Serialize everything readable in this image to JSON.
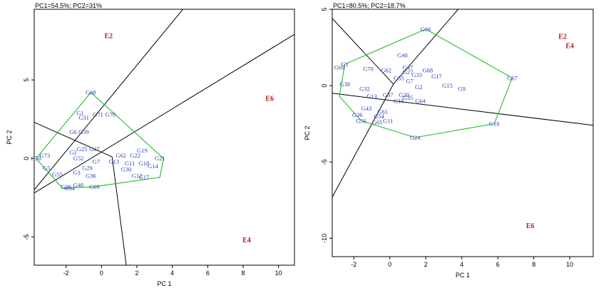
{
  "chart_data": [
    {
      "type": "scatter",
      "subtype": "gge-biplot-which-won-where",
      "title": "PC1=54.5%; PC2=31%",
      "xlabel": "PC 1",
      "ylabel": "PC 2",
      "xlim": [
        -3.8,
        10.9
      ],
      "ylim": [
        -6.8,
        9.5
      ],
      "xticks": [
        -2,
        0,
        2,
        4,
        6,
        8,
        10
      ],
      "yticks": [
        -5,
        0,
        5
      ],
      "grid": false,
      "hull_color": "#39c039",
      "line_color": "#000000",
      "genotype_color": "#2b3fb5",
      "environment_color": "#b22222",
      "environments": [
        {
          "name": "E2",
          "x": 0.4,
          "y": 7.8
        },
        {
          "name": "E6",
          "x": 9.5,
          "y": 3.8
        },
        {
          "name": "E4",
          "x": 8.2,
          "y": -5.2
        }
      ],
      "genotypes": [
        {
          "name": "G68",
          "x": -0.6,
          "y": 4.2
        },
        {
          "name": "G1",
          "x": -1.2,
          "y": 2.9
        },
        {
          "name": "G31",
          "x": -1.0,
          "y": 2.6
        },
        {
          "name": "G71",
          "x": -0.2,
          "y": 2.8
        },
        {
          "name": "G70",
          "x": 0.5,
          "y": 2.8
        },
        {
          "name": "G6",
          "x": -1.6,
          "y": 1.7
        },
        {
          "name": "G39",
          "x": -1.0,
          "y": 1.7
        },
        {
          "name": "G73",
          "x": -3.2,
          "y": 0.2
        },
        {
          "name": "G50",
          "x": -3.7,
          "y": 0.0
        },
        {
          "name": "G5",
          "x": -3.1,
          "y": -0.6
        },
        {
          "name": "G55",
          "x": -2.5,
          "y": -1.0
        },
        {
          "name": "G3",
          "x": -1.4,
          "y": -0.9
        },
        {
          "name": "G26",
          "x": -2.0,
          "y": -1.8
        },
        {
          "name": "G54",
          "x": -1.8,
          "y": -1.9
        },
        {
          "name": "G40",
          "x": -1.3,
          "y": -1.7
        },
        {
          "name": "G36",
          "x": -0.6,
          "y": -1.1
        },
        {
          "name": "G69",
          "x": -0.4,
          "y": -1.8
        },
        {
          "name": "G25",
          "x": -1.1,
          "y": 0.6
        },
        {
          "name": "G47",
          "x": -0.4,
          "y": 0.6
        },
        {
          "name": "G2",
          "x": -1.6,
          "y": 0.4
        },
        {
          "name": "G52",
          "x": -1.3,
          "y": 0.0
        },
        {
          "name": "G7",
          "x": -0.3,
          "y": -0.2
        },
        {
          "name": "G13",
          "x": 0.7,
          "y": -0.2
        },
        {
          "name": "G29",
          "x": -0.8,
          "y": -0.6
        },
        {
          "name": "G30",
          "x": 1.4,
          "y": -0.7
        },
        {
          "name": "G19",
          "x": 2.3,
          "y": 0.5
        },
        {
          "name": "G22",
          "x": 1.9,
          "y": 0.2
        },
        {
          "name": "G62",
          "x": 1.1,
          "y": 0.2
        },
        {
          "name": "G11",
          "x": 1.6,
          "y": -0.3
        },
        {
          "name": "G18",
          "x": 2.4,
          "y": -0.3
        },
        {
          "name": "G21",
          "x": 3.3,
          "y": 0.0
        },
        {
          "name": "G14",
          "x": 2.9,
          "y": -0.5
        },
        {
          "name": "G12",
          "x": 2.0,
          "y": -1.1
        },
        {
          "name": "G17",
          "x": 2.4,
          "y": -1.2
        }
      ],
      "hull": [
        {
          "x": -0.6,
          "y": 4.2
        },
        {
          "x": 3.5,
          "y": 0.0
        },
        {
          "x": 3.3,
          "y": -1.2
        },
        {
          "x": -0.4,
          "y": -1.8
        },
        {
          "x": -2.2,
          "y": -1.9
        },
        {
          "x": -3.7,
          "y": 0.0
        }
      ],
      "rays": [
        {
          "x1": -3.8,
          "y1": -2.2,
          "x2": 10.9,
          "y2": 7.9
        },
        {
          "x1": -3.8,
          "y1": 2.3,
          "x2": 0.6,
          "y2": 0.1
        },
        {
          "x1": 0.6,
          "y1": 0.1,
          "x2": 1.4,
          "y2": -6.8
        },
        {
          "x1": -3.8,
          "y1": -2.0,
          "x2": 4.6,
          "y2": 9.5
        }
      ]
    },
    {
      "type": "scatter",
      "subtype": "gge-biplot-which-won-where",
      "title": "PC1=80.5%; PC2=18.7%",
      "xlabel": "PC 1",
      "ylabel": "PC 2",
      "xlim": [
        -3.2,
        11.3
      ],
      "ylim": [
        -11.2,
        5.0
      ],
      "xticks": [
        -2,
        0,
        2,
        4,
        6,
        8,
        10
      ],
      "yticks": [
        -10,
        -5,
        0,
        5
      ],
      "grid": false,
      "hull_color": "#39c039",
      "line_color": "#000000",
      "genotype_color": "#2b3fb5",
      "environment_color": "#b22222",
      "environments": [
        {
          "name": "E2",
          "x": 9.6,
          "y": 3.2
        },
        {
          "name": "E4",
          "x": 10.0,
          "y": 2.6
        },
        {
          "name": "E6",
          "x": 7.8,
          "y": -9.2
        }
      ],
      "genotypes": [
        {
          "name": "G66",
          "x": 2.0,
          "y": 3.7
        },
        {
          "name": "G40",
          "x": 0.7,
          "y": 2.0
        },
        {
          "name": "G67",
          "x": 6.8,
          "y": 0.5
        },
        {
          "name": "G18",
          "x": 5.8,
          "y": -2.5
        },
        {
          "name": "G24",
          "x": 1.4,
          "y": -3.4
        },
        {
          "name": "G68",
          "x": 2.1,
          "y": 1.0
        },
        {
          "name": "G17",
          "x": 2.6,
          "y": 0.6
        },
        {
          "name": "G15",
          "x": 3.2,
          "y": 0.0
        },
        {
          "name": "G9",
          "x": 4.0,
          "y": -0.2
        },
        {
          "name": "G2",
          "x": 1.6,
          "y": -0.1
        },
        {
          "name": "G64",
          "x": 1.7,
          "y": -1.0
        },
        {
          "name": "G35",
          "x": 1.0,
          "y": -0.8
        },
        {
          "name": "G20",
          "x": 0.8,
          "y": -0.6
        },
        {
          "name": "G47",
          "x": 1.0,
          "y": 1.2
        },
        {
          "name": "G27",
          "x": 1.0,
          "y": 0.9
        },
        {
          "name": "G33",
          "x": 1.5,
          "y": 0.7
        },
        {
          "name": "G7",
          "x": 1.1,
          "y": 0.3
        },
        {
          "name": "G55",
          "x": 0.5,
          "y": 0.5
        },
        {
          "name": "G16",
          "x": 0.5,
          "y": -1.0
        },
        {
          "name": "G1",
          "x": -2.5,
          "y": 1.4
        },
        {
          "name": "G69",
          "x": -2.8,
          "y": 1.2
        },
        {
          "name": "G70",
          "x": -1.2,
          "y": 1.1
        },
        {
          "name": "G62",
          "x": -0.2,
          "y": 1.0
        },
        {
          "name": "G32",
          "x": -1.4,
          "y": -0.2
        },
        {
          "name": "G38",
          "x": -2.5,
          "y": 0.1
        },
        {
          "name": "G13",
          "x": -1.0,
          "y": -0.7
        },
        {
          "name": "G37",
          "x": -0.1,
          "y": -0.6
        },
        {
          "name": "G36",
          "x": -1.8,
          "y": -1.9
        },
        {
          "name": "G43",
          "x": -1.3,
          "y": -1.5
        },
        {
          "name": "G61",
          "x": -0.4,
          "y": -1.7
        },
        {
          "name": "G54",
          "x": -0.6,
          "y": -2.0
        },
        {
          "name": "G56",
          "x": -1.6,
          "y": -2.3
        },
        {
          "name": "G65",
          "x": -0.7,
          "y": -2.4
        },
        {
          "name": "G11",
          "x": -0.1,
          "y": -2.3
        }
      ],
      "hull": [
        {
          "x": 2.0,
          "y": 3.7
        },
        {
          "x": 6.8,
          "y": 0.5
        },
        {
          "x": 5.8,
          "y": -2.5
        },
        {
          "x": 1.4,
          "y": -3.4
        },
        {
          "x": -1.6,
          "y": -2.3
        },
        {
          "x": -2.8,
          "y": -0.7
        },
        {
          "x": -2.5,
          "y": 1.4
        }
      ],
      "rays": [
        {
          "x1": -3.2,
          "y1": 4.4,
          "x2": 0.2,
          "y2": 0.1
        },
        {
          "x1": 0.2,
          "y1": 0.1,
          "x2": 3.8,
          "y2": 5.0
        },
        {
          "x1": -3.2,
          "y1": -0.5,
          "x2": 11.3,
          "y2": -2.6
        },
        {
          "x1": 0.2,
          "y1": 0.1,
          "x2": -3.2,
          "y2": -7.3
        }
      ]
    }
  ]
}
